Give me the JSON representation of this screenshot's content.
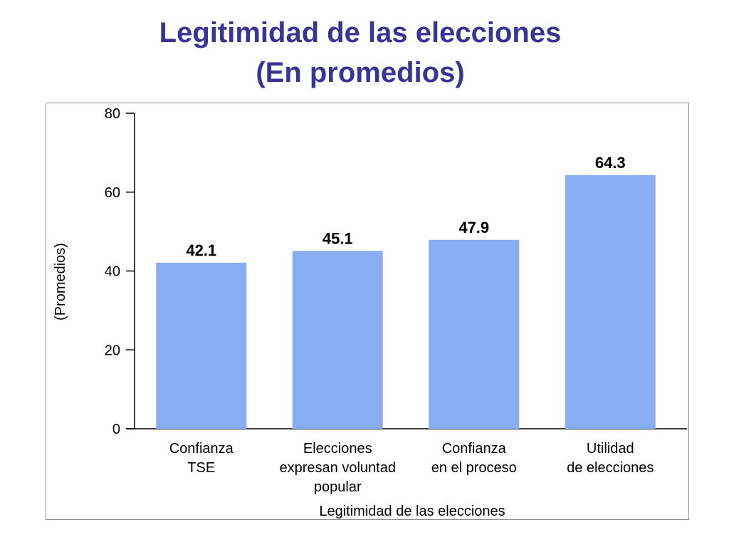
{
  "slide": {
    "title_line1": "Legitimidad de las elecciones",
    "title_line2": "(En promedios)"
  },
  "colors": {
    "title": "#3b3494",
    "bar": "#88adf3",
    "axis": "#000000",
    "frame": "#8c8c8c"
  },
  "chart_data": {
    "type": "bar",
    "categories": [
      [
        "Confianza",
        "TSE"
      ],
      [
        "Elecciones",
        "expresan voluntad",
        "popular"
      ],
      [
        "Confianza",
        "en el proceso"
      ],
      [
        "Utilidad",
        "de elecciones"
      ]
    ],
    "values": [
      42.1,
      45.1,
      47.9,
      64.3
    ],
    "value_labels": [
      "42.1",
      "45.1",
      "47.9",
      "64.3"
    ],
    "xlabel": "Legitimidad de las elecciones",
    "ylabel": "(Promedios)",
    "ylim": [
      0,
      80
    ],
    "yticks": [
      0,
      20,
      40,
      60,
      80
    ],
    "grid": false,
    "legend": "none"
  }
}
